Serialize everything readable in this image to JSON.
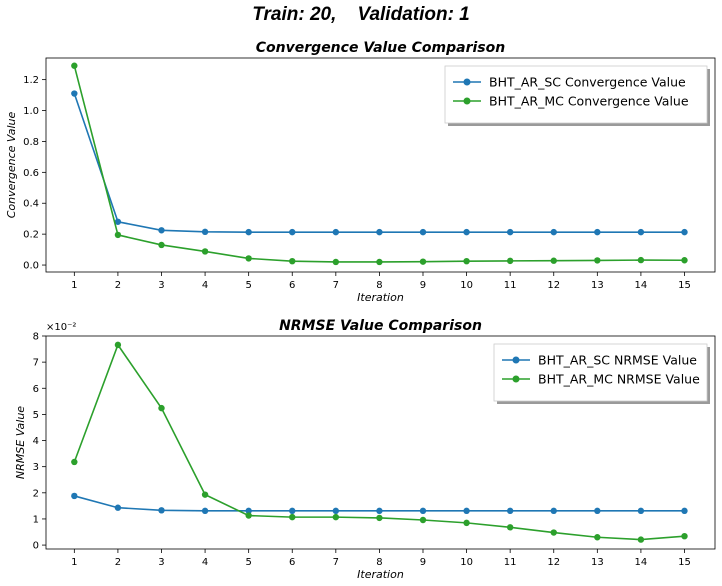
{
  "suptitle": "Train: 20,    Validation: 1",
  "chart_data": [
    {
      "type": "line",
      "title": "Convergence Value Comparison",
      "xlabel": "Iteration",
      "ylabel": "Convergence Value",
      "x": [
        1,
        2,
        3,
        4,
        5,
        6,
        7,
        8,
        9,
        10,
        11,
        12,
        13,
        14,
        15
      ],
      "xlim": [
        0.35,
        15.7
      ],
      "ylim": [
        -0.045,
        1.34
      ],
      "yticks": [
        0.0,
        0.2,
        0.4,
        0.6,
        0.8,
        1.0,
        1.2
      ],
      "ytick_labels": [
        "0.0",
        "0.2",
        "0.4",
        "0.6",
        "0.8",
        "1.0",
        "1.2"
      ],
      "legend_position": "upper right",
      "series": [
        {
          "name": "BHT_AR_SC Convergence Value",
          "color": "#1f77b4",
          "values": [
            1.11,
            0.28,
            0.225,
            0.215,
            0.213,
            0.213,
            0.213,
            0.213,
            0.213,
            0.213,
            0.213,
            0.213,
            0.213,
            0.213,
            0.213
          ]
        },
        {
          "name": "BHT_AR_MC Convergence Value",
          "color": "#2ca02c",
          "values": [
            1.29,
            0.195,
            0.13,
            0.088,
            0.043,
            0.025,
            0.02,
            0.02,
            0.022,
            0.025,
            0.027,
            0.028,
            0.03,
            0.032,
            0.031
          ]
        }
      ]
    },
    {
      "type": "line",
      "title": "NRMSE Value Comparison",
      "xlabel": "Iteration",
      "ylabel": "NRMSE Value",
      "offset_text": "×10⁻²",
      "x": [
        1,
        2,
        3,
        4,
        5,
        6,
        7,
        8,
        9,
        10,
        11,
        12,
        13,
        14,
        15
      ],
      "xlim": [
        0.35,
        15.7
      ],
      "ylim": [
        -0.0015,
        0.08
      ],
      "yticks": [
        0,
        0.01,
        0.02,
        0.03,
        0.04,
        0.05,
        0.06,
        0.07,
        0.08
      ],
      "ytick_labels": [
        "0",
        "1",
        "2",
        "3",
        "4",
        "5",
        "6",
        "7",
        "8"
      ],
      "legend_position": "upper right",
      "series": [
        {
          "name": "BHT_AR_SC NRMSE Value",
          "color": "#1f77b4",
          "values": [
            0.0188,
            0.0143,
            0.0133,
            0.0131,
            0.0131,
            0.0131,
            0.0131,
            0.0131,
            0.0131,
            0.0131,
            0.0131,
            0.0131,
            0.0131,
            0.0131,
            0.0131
          ]
        },
        {
          "name": "BHT_AR_MC NRMSE Value",
          "color": "#2ca02c",
          "values": [
            0.0318,
            0.0766,
            0.0524,
            0.0193,
            0.0113,
            0.0107,
            0.0107,
            0.0104,
            0.0096,
            0.0085,
            0.0068,
            0.0048,
            0.003,
            0.0021,
            0.0034
          ]
        }
      ]
    }
  ]
}
